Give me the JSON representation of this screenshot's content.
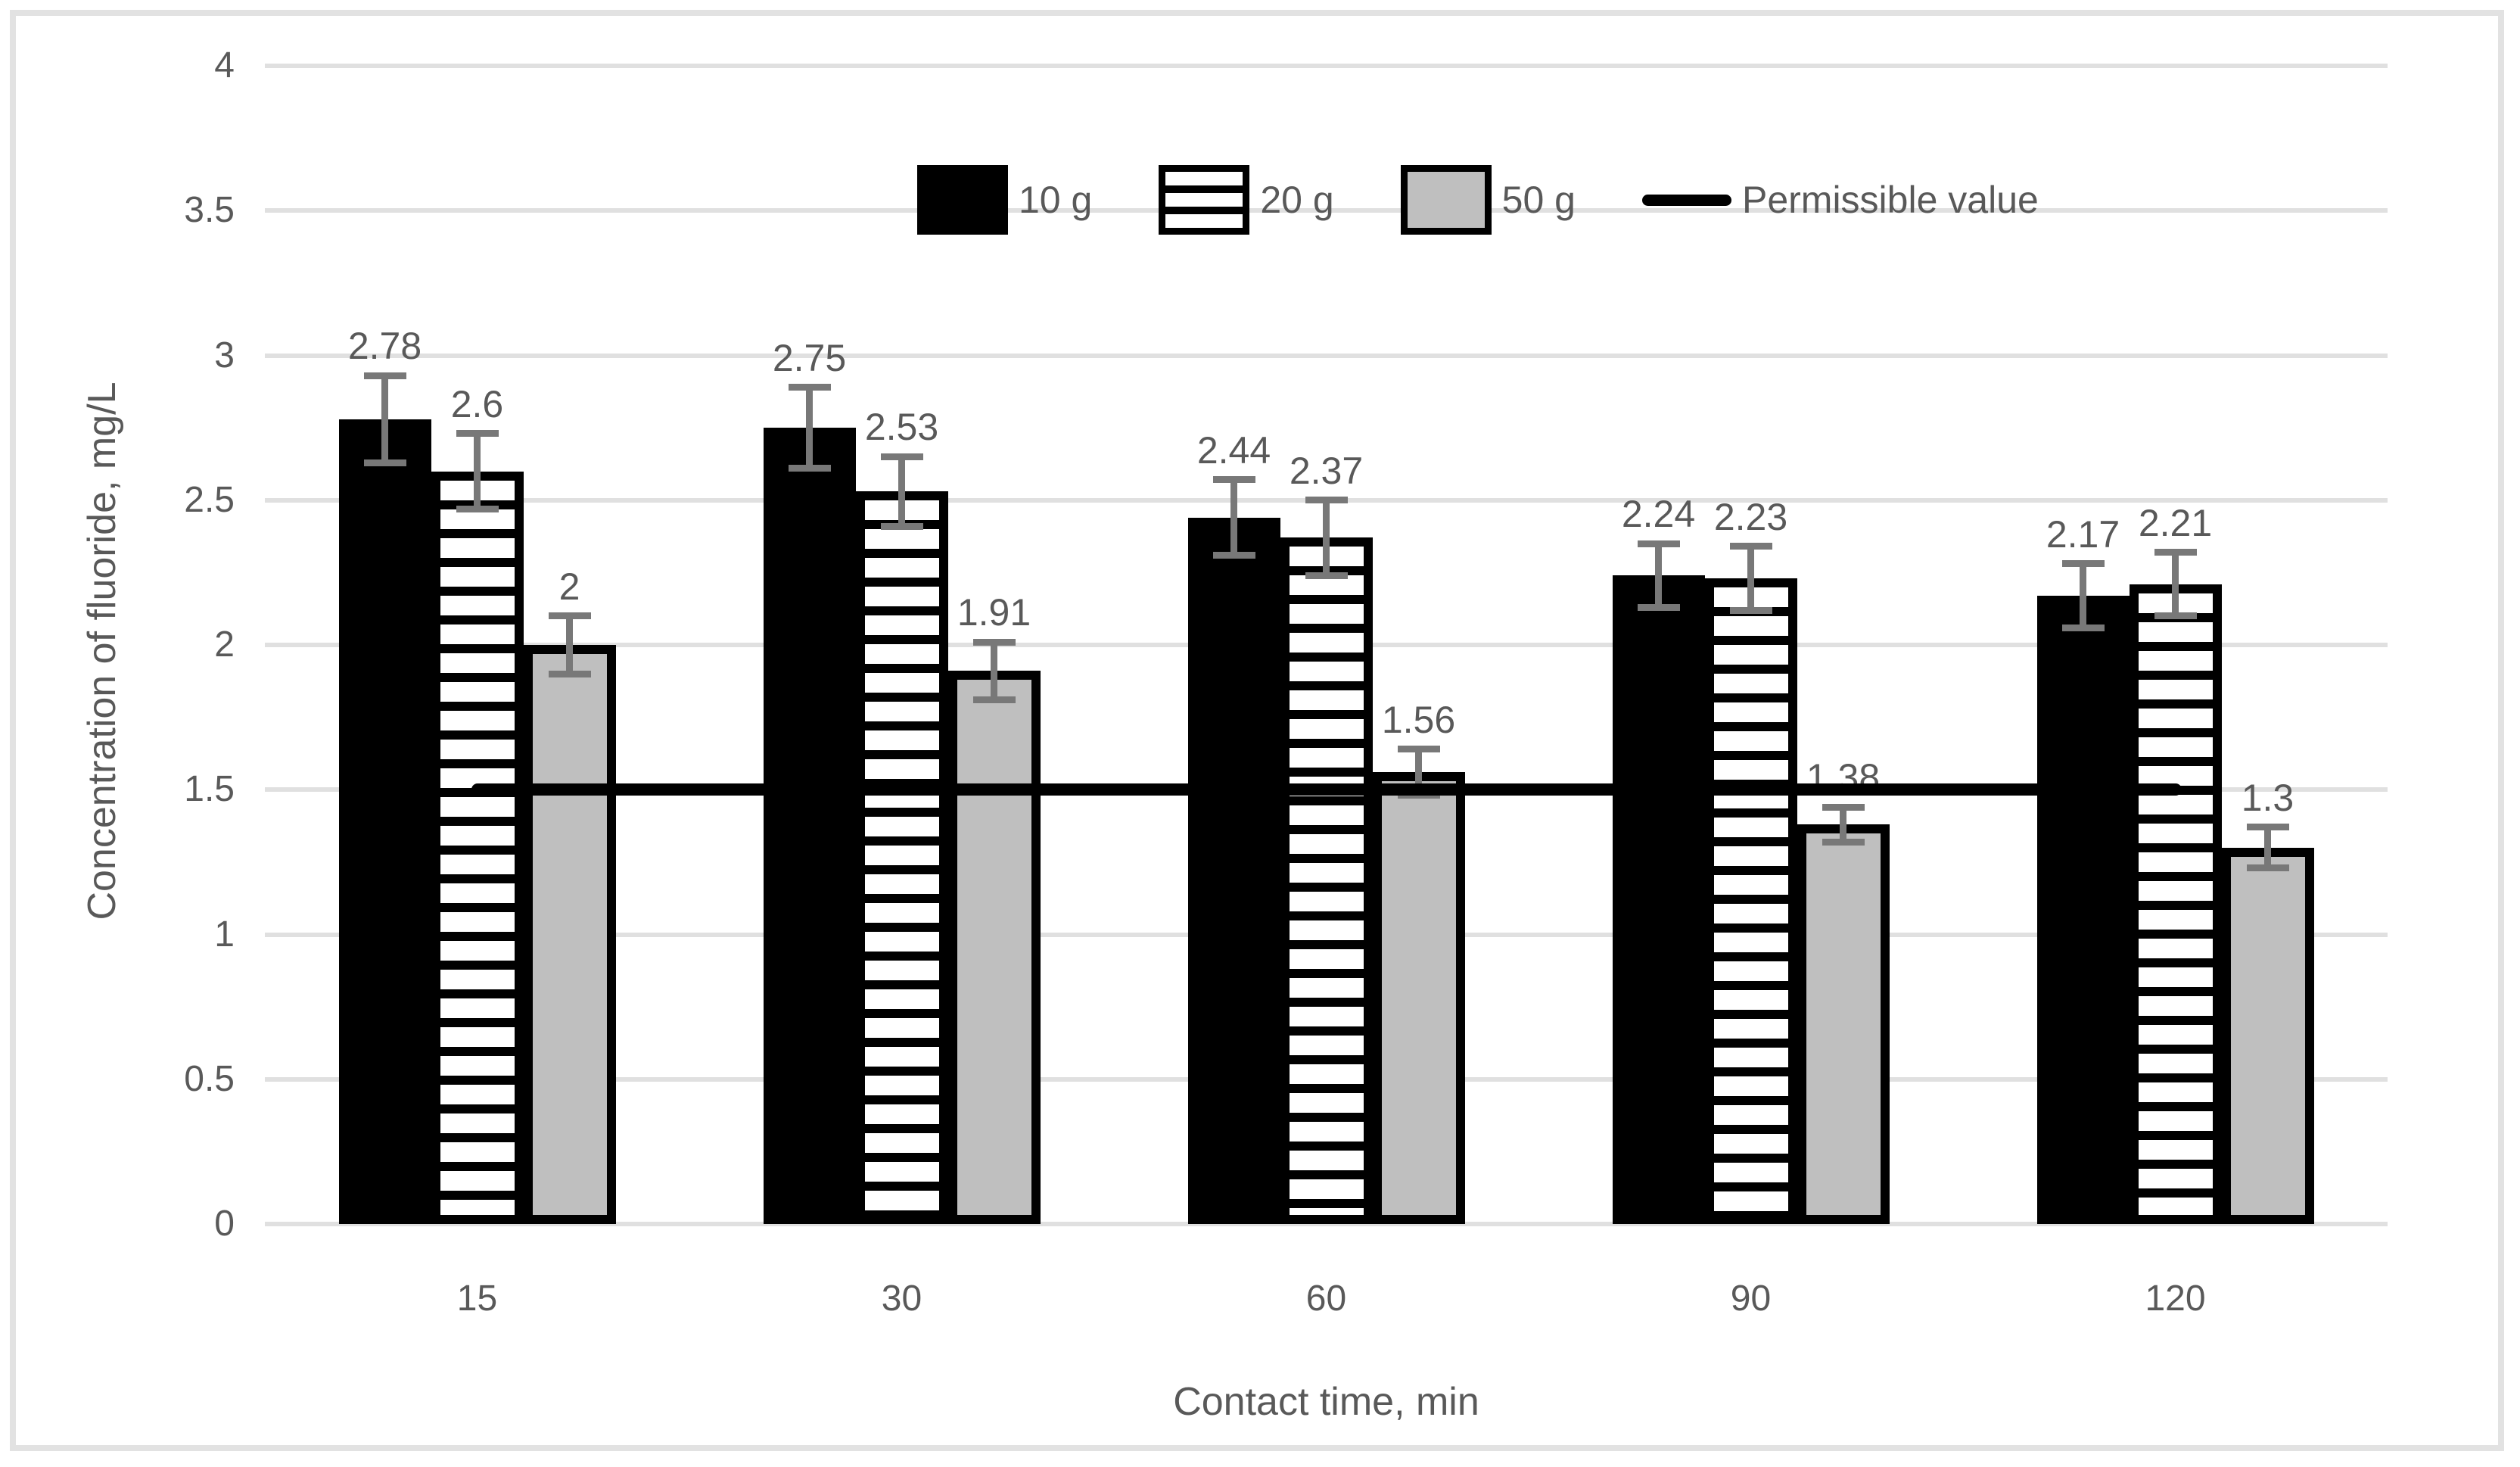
{
  "chart_data": {
    "type": "bar",
    "title": "",
    "xlabel": "Contact time, min",
    "ylabel": "Concentration of fluoride, mg/L",
    "categories": [
      "15",
      "30",
      "60",
      "90",
      "120"
    ],
    "series": [
      {
        "name": "10 g",
        "marker": "black-solid",
        "values": [
          2.78,
          2.75,
          2.44,
          2.24,
          2.17
        ],
        "labels": [
          "2.78",
          "2.75",
          "2.44",
          "2.24",
          "2.17"
        ],
        "errors": [
          0.15,
          0.14,
          0.13,
          0.11,
          0.11
        ]
      },
      {
        "name": "20 g",
        "marker": "horizontal-stripes",
        "values": [
          2.6,
          2.53,
          2.37,
          2.23,
          2.21
        ],
        "labels": [
          "2.6",
          "2.53",
          "2.37",
          "2.23",
          "2.21"
        ],
        "errors": [
          0.13,
          0.12,
          0.13,
          0.11,
          0.11
        ]
      },
      {
        "name": "50 g",
        "marker": "gray-solid",
        "values": [
          2.0,
          1.91,
          1.56,
          1.38,
          1.3
        ],
        "labels": [
          "2",
          "1.91",
          "1.56",
          "1.38",
          "1.3"
        ],
        "errors": [
          0.1,
          0.1,
          0.08,
          0.06,
          0.07
        ]
      }
    ],
    "permissible": {
      "name": "Permissible value",
      "value": 1.5
    },
    "ylim": [
      0,
      4
    ],
    "ytick_step": 0.5,
    "yticks": [
      "0",
      "0.5",
      "1",
      "1.5",
      "2",
      "2.5",
      "3",
      "3.5",
      "4"
    ],
    "grid": true,
    "legend_position": "top-center",
    "colors": {
      "bar_black": "#000000",
      "bar_gray": "#BFBFBF",
      "text_gray": "#595959",
      "gridline": "#E0E0E0",
      "error_bar": "#787878",
      "permissible_line": "#000000",
      "frame_border": "#E2E2E2"
    }
  }
}
